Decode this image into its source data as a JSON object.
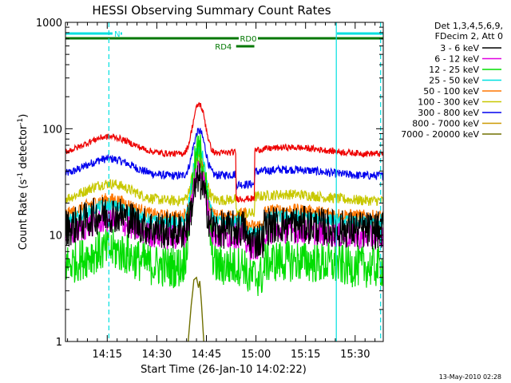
{
  "chart_data": {
    "type": "line",
    "title": "HESSI Observing Summary Count Rates",
    "xlabel": "Start Time (26-Jan-10 14:02:22)",
    "ylabel_main": "Count Rate (s",
    "ylabel_sup1": "-1",
    "ylabel_mid": " detector",
    "ylabel_sup2": "-1",
    "ylabel_end": ")",
    "y_scale": "log",
    "ylim": [
      1,
      1000
    ],
    "xlim_minutes": [
      2.37,
      98.5
    ],
    "x_ticks": [
      {
        "label": "14:15",
        "minute": 15
      },
      {
        "label": "14:30",
        "minute": 30
      },
      {
        "label": "14:45",
        "minute": 45
      },
      {
        "label": "15:00",
        "minute": 60
      },
      {
        "label": "15:15",
        "minute": 75
      },
      {
        "label": "15:30",
        "minute": 90
      }
    ],
    "y_ticks": [
      {
        "label": "1",
        "value": 1
      },
      {
        "label": "10",
        "value": 10
      },
      {
        "label": "100",
        "value": 100
      },
      {
        "label": "1000",
        "value": 1000
      }
    ],
    "legend_header": [
      "Det 1,3,4,5,6,9,",
      "FDecim 2, Att 0"
    ],
    "legend_position": "right",
    "series": [
      {
        "name": "3 - 6 keV",
        "color": "#000000",
        "quiet": 11,
        "peak": 32,
        "eclipse": 0,
        "noise": 0.18
      },
      {
        "name": "6 - 12 keV",
        "color": "#e000e0",
        "quiet": 9.5,
        "peak": 42,
        "eclipse": 0,
        "noise": 0.12
      },
      {
        "name": "12 - 25 keV",
        "color": "#00dd00",
        "quiet": 5,
        "peak": 60,
        "eclipse": 0,
        "noise": 0.2
      },
      {
        "name": "25 - 50 keV",
        "color": "#00e0e0",
        "quiet": 13,
        "peak": 65,
        "eclipse": 0,
        "noise": 0.06
      },
      {
        "name": "50 - 100 keV",
        "color": "#ff7700",
        "quiet": 15,
        "peak": 50,
        "eclipse": 0,
        "noise": 0.06
      },
      {
        "name": "100 - 300 keV",
        "color": "#c8c800",
        "quiet": 21,
        "peak": 58,
        "eclipse": 16,
        "noise": 0.05
      },
      {
        "name": "300 - 800 keV",
        "color": "#0000ee",
        "quiet": 36,
        "peak": 95,
        "eclipse": 30,
        "noise": 0.04
      },
      {
        "name": "800 - 7000 keV",
        "color": "#cc9900",
        "quiet": 0,
        "peak": 0,
        "eclipse": 0,
        "noise": 0
      },
      {
        "name": "7000 - 20000 keV",
        "color": "#707000",
        "quiet": 0,
        "peak": 4,
        "eclipse": 0,
        "noise": 0
      }
    ],
    "red_series": {
      "name": "red",
      "color": "#ee0000",
      "quiet": 58,
      "peak": 170,
      "eclipse": 22,
      "noise": 0.03
    },
    "flag_bars": [
      {
        "label": "N",
        "color": "#00e0e0",
        "segments": [
          [
            2.37,
            19.5
          ],
          [
            84.5,
            98.5
          ]
        ],
        "level": "top"
      },
      {
        "label": "RD0",
        "color": "#007700",
        "segments": [
          [
            2.37,
            98.5
          ]
        ],
        "level": "mid"
      },
      {
        "label": "RD4",
        "color": "#007700",
        "segments": [
          [
            54.0,
            59.5
          ]
        ],
        "level": "low"
      }
    ],
    "vertical_markers": [
      {
        "minute": 15.5,
        "color": "#00e0e0",
        "style": "dashed"
      },
      {
        "minute": 84.3,
        "color": "#00e0e0",
        "style": "solid"
      },
      {
        "minute": 97.7,
        "color": "#00e0e0",
        "style": "dashed"
      }
    ],
    "flare_peak_minute": 42.8,
    "eclipse_minutes": [
      54.0,
      59.5
    ]
  },
  "footer": {
    "timestamp": "13-May-2010 02:28"
  }
}
